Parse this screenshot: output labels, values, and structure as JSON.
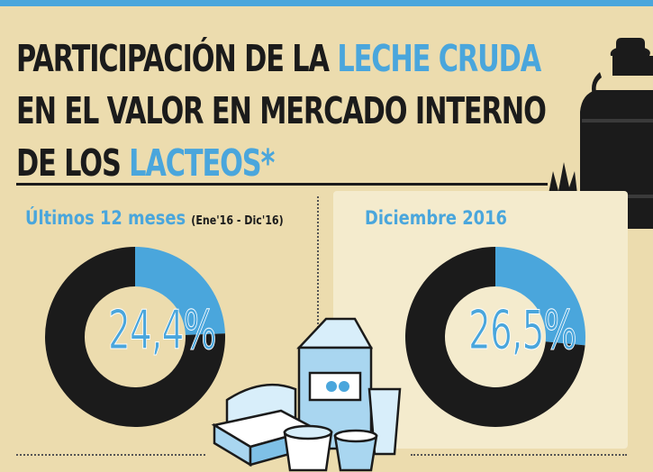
{
  "title": {
    "line1_a": "PARTICIPACIÓN DE LA ",
    "line1_b": "LECHE CRUDA",
    "line2": "EN EL VALOR EN MERCADO INTERNO",
    "line3_a": "DE LOS ",
    "line3_b": "LACTEOS*"
  },
  "chart_data": [
    {
      "type": "pie",
      "title": "Últimos 12 meses",
      "subtitle": "(Ene'16 - Dic'16)",
      "slices": [
        {
          "value": 24.4,
          "color": "#4aa6dc"
        },
        {
          "value": 75.6,
          "color": "#1b1b1b"
        }
      ],
      "label": "24,4%"
    },
    {
      "type": "pie",
      "title": "Diciembre 2016",
      "slices": [
        {
          "value": 26.5,
          "color": "#4aa6dc"
        },
        {
          "value": 73.5,
          "color": "#1b1b1b"
        }
      ],
      "label": "26,5%"
    }
  ],
  "colors": {
    "accent": "#4aa6dc",
    "dark": "#1b1b1b",
    "background": "#ecdcae",
    "panel": "#f4ebcd"
  },
  "icons": [
    "milk-can-icon",
    "dairy-products-icon"
  ]
}
